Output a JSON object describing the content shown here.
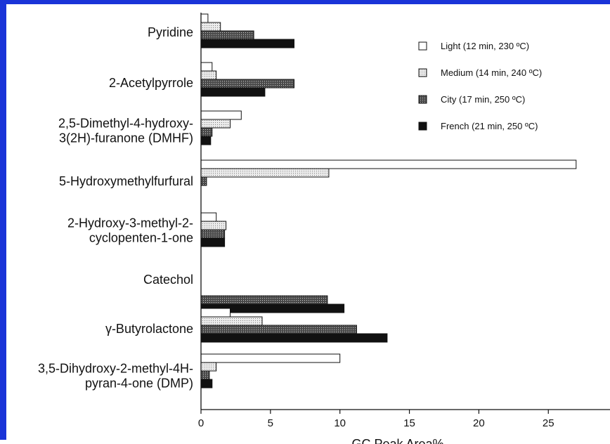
{
  "chart_data": {
    "type": "bar",
    "orientation": "horizontal",
    "categories": [
      [
        "Pyridine"
      ],
      [
        "2-Acetylpyrrole"
      ],
      [
        "2,5-Dimethyl-4-hydroxy-",
        "3(2H)-furanone (DMHF)"
      ],
      [
        "5-Hydroxymethylfurfural"
      ],
      [
        "2-Hydroxy-3-methyl-2-",
        "cyclopenten-1-one"
      ],
      [
        "Catechol"
      ],
      [
        "γ-Butyrolactone"
      ],
      [
        "3,5-Dihydroxy-2-methyl-4H-",
        "pyran-4-one (DMP)"
      ]
    ],
    "series": [
      {
        "name": "Light (12 min, 230 ºC)",
        "values": [
          0.5,
          0.8,
          2.9,
          27.0,
          1.1,
          0.0,
          2.1,
          10.0
        ]
      },
      {
        "name": "Medium (14 min, 240 ºC)",
        "values": [
          1.4,
          1.1,
          2.1,
          9.2,
          1.8,
          0.0,
          4.4,
          1.1
        ]
      },
      {
        "name": "City (17 min, 250 ºC)",
        "values": [
          3.8,
          6.7,
          0.8,
          0.4,
          1.7,
          9.1,
          11.2,
          0.6
        ]
      },
      {
        "name": "French (21 min, 250 ºC)",
        "values": [
          6.7,
          4.6,
          0.7,
          0.0,
          1.7,
          10.3,
          13.4,
          0.8
        ]
      }
    ],
    "xlabel": "GC Peak Area%",
    "ylabel": "",
    "xlim": [
      0,
      30
    ],
    "xticks": [
      "0",
      "5",
      "10",
      "15",
      "20",
      "25",
      "30"
    ],
    "grid": false,
    "legend_position": "top-right",
    "colors": {
      "frame_border": "#1a34d8",
      "bar_outline": "#111111",
      "light_fill": "#ffffff",
      "medium_fill": "#dedede",
      "city_fill": "#5c5c5c",
      "french_fill": "#111111"
    }
  }
}
